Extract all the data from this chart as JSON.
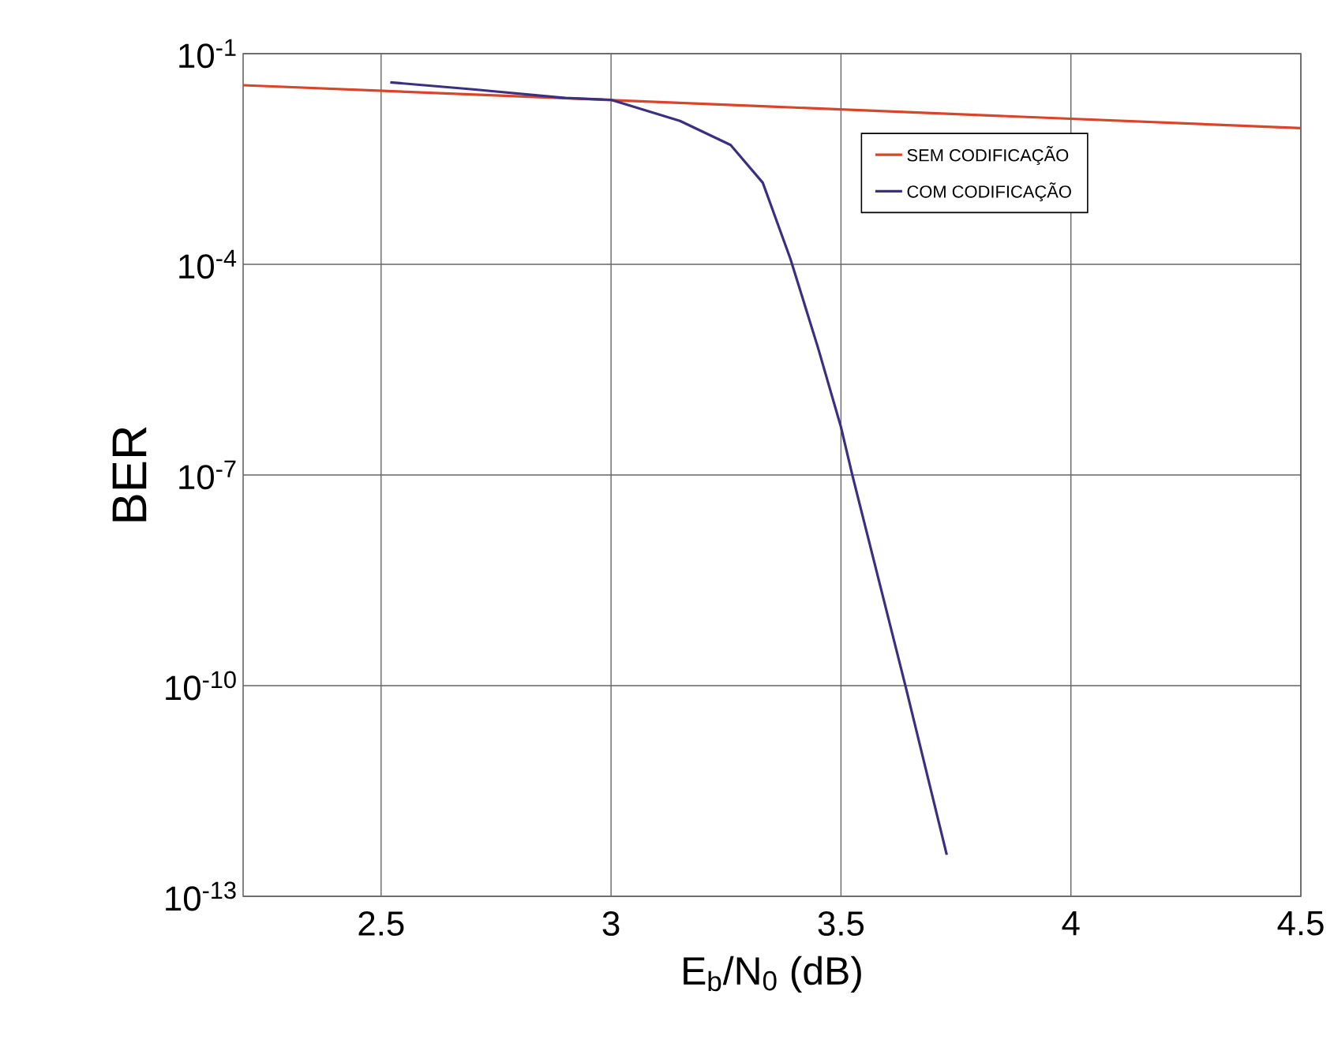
{
  "chart_data": {
    "type": "line",
    "xlabel": "E$_{b}$/N$_{0}$ (dB)",
    "ylabel": "BER",
    "log": "y",
    "xlim": [
      2.2,
      4.5
    ],
    "xticks": [
      2.5,
      3,
      3.5,
      4,
      4.5
    ],
    "ylim": [
      1e-13,
      0.1
    ],
    "yticks": [
      {
        "value": 0.1,
        "label": "10$^{-1}$"
      },
      {
        "value": 0.0001,
        "label": "10$^{-4}$"
      },
      {
        "value": 1e-07,
        "label": "10$^{-7}$"
      },
      {
        "value": 1e-10,
        "label": "10$^{-10}$"
      },
      {
        "value": 1e-13,
        "label": "10$^{-13}$"
      }
    ],
    "grid": true,
    "legend": "top right",
    "marker": "none",
    "line_style": "solid",
    "series": [
      {
        "name": "SEM CODIFICAÇÃO",
        "color": "#d9452b",
        "x": [
          2.2,
          3.35,
          4.5
        ],
        "values": [
          0.0355,
          0.0176,
          0.0087
        ]
      },
      {
        "name": "COM CODIFICAÇÃO",
        "color": "#3b2f7f",
        "x": [
          2.52,
          2.7,
          2.9,
          3.0,
          3.15,
          3.26,
          3.33,
          3.39,
          3.45,
          3.5,
          3.525,
          3.64,
          3.73
        ],
        "values": [
          0.039,
          0.031,
          0.0234,
          0.022,
          0.011,
          0.005,
          0.00145,
          0.00012,
          6.5e-06,
          4.8e-07,
          9.8e-08,
          1e-10,
          3.9e-13
        ]
      }
    ]
  }
}
